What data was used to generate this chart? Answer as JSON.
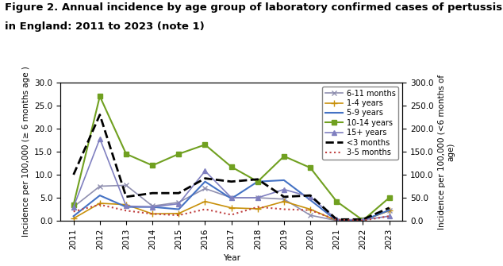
{
  "title_line1": "Figure 2. Annual incidence by age group of laboratory confirmed cases of pertussis",
  "title_line2": "in England: 2011 to 2023 (note 1)",
  "years": [
    2011,
    2012,
    2013,
    2014,
    2015,
    2016,
    2017,
    2018,
    2019,
    2020,
    2021,
    2022,
    2023
  ],
  "series": {
    "6-11 months": {
      "values": [
        3.0,
        7.5,
        7.7,
        3.2,
        4.0,
        7.0,
        5.0,
        5.0,
        4.7,
        1.2,
        0.05,
        0.1,
        2.2
      ],
      "color": "#9090b0",
      "linestyle": "-",
      "marker": "x",
      "markersize": 5,
      "linewidth": 1.2,
      "axis": "left"
    },
    "1-4 years": {
      "values": [
        0.5,
        3.8,
        3.5,
        1.5,
        1.6,
        4.2,
        2.8,
        2.6,
        4.2,
        2.5,
        0.05,
        0.05,
        2.2
      ],
      "color": "#c8900a",
      "linestyle": "-",
      "marker": "+",
      "markersize": 6,
      "linewidth": 1.2,
      "axis": "left"
    },
    "5-9 years": {
      "values": [
        1.0,
        5.5,
        3.0,
        3.0,
        2.5,
        8.5,
        4.8,
        8.5,
        8.8,
        4.5,
        0.05,
        0.1,
        2.3
      ],
      "color": "#4472c4",
      "linestyle": "-",
      "marker": null,
      "markersize": 0,
      "linewidth": 1.5,
      "axis": "left"
    },
    "10-14 years": {
      "values": [
        3.5,
        27.0,
        14.5,
        12.0,
        14.5,
        16.5,
        11.7,
        8.5,
        14.0,
        11.5,
        4.2,
        0.1,
        5.0
      ],
      "color": "#70a020",
      "linestyle": "-",
      "marker": "s",
      "markersize": 4,
      "linewidth": 1.5,
      "axis": "left"
    },
    "15+ years": {
      "values": [
        3.0,
        17.8,
        3.2,
        3.0,
        3.7,
        10.8,
        5.0,
        5.0,
        6.8,
        5.2,
        0.3,
        0.2,
        1.0
      ],
      "color": "#8080c0",
      "linestyle": "-",
      "marker": "^",
      "markersize": 4,
      "linewidth": 1.2,
      "axis": "left"
    },
    "<3 months": {
      "values": [
        10.0,
        23.0,
        5.2,
        6.0,
        6.0,
        9.2,
        8.5,
        9.0,
        5.2,
        5.5,
        0.3,
        0.3,
        2.8
      ],
      "color": "#000000",
      "linestyle": "--",
      "marker": null,
      "markersize": 0,
      "linewidth": 2.0,
      "axis": "left"
    },
    "3-5 months": {
      "values": [
        2.0,
        3.5,
        2.2,
        1.5,
        1.2,
        2.5,
        1.3,
        3.0,
        2.5,
        2.3,
        0.2,
        0.05,
        1.0
      ],
      "color": "#c04040",
      "linestyle": ":",
      "marker": null,
      "markersize": 0,
      "linewidth": 1.5,
      "axis": "left"
    }
  },
  "xlabel": "Year",
  "ylabel_left": "Incidence per 100,000 (≥ 6 months age )",
  "ylabel_right": "Incidence per 100,000 (<6 months of\nage)",
  "ylim_left": [
    0,
    30.0
  ],
  "ylim_right": [
    0,
    300.0
  ],
  "yticks_left": [
    0.0,
    5.0,
    10.0,
    15.0,
    20.0,
    25.0,
    30.0
  ],
  "yticks_right": [
    0.0,
    50.0,
    100.0,
    150.0,
    200.0,
    250.0,
    300.0
  ],
  "background_color": "#ffffff",
  "title_fontsize": 9.5,
  "axis_fontsize": 7.5,
  "tick_fontsize": 7.5
}
